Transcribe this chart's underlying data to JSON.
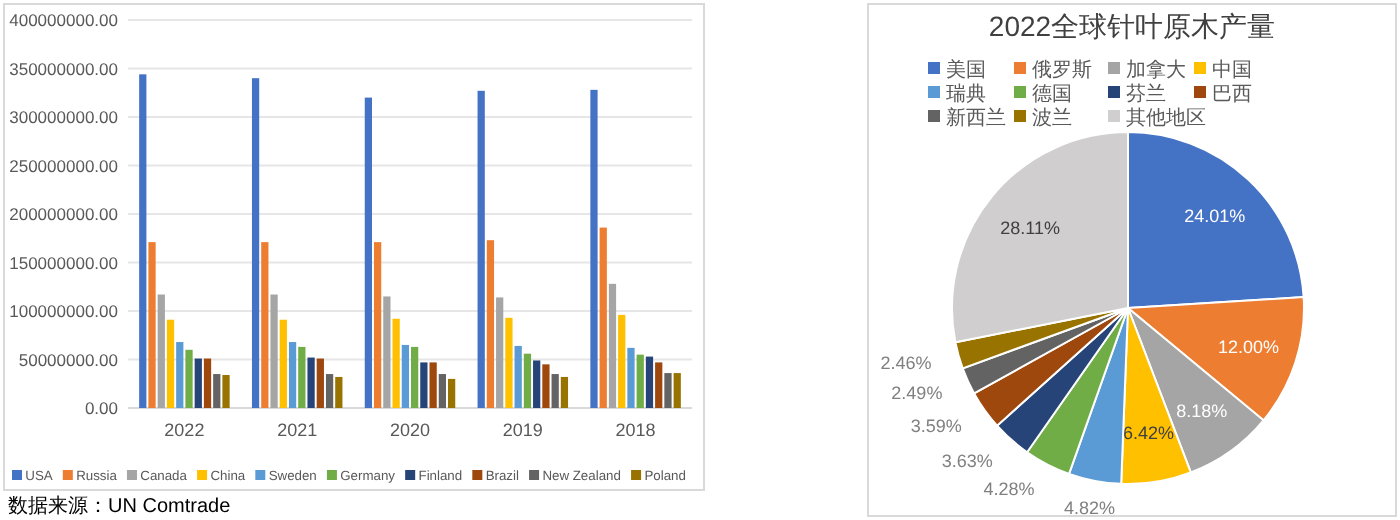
{
  "chart_data": [
    {
      "type": "bar",
      "categories": [
        "2022",
        "2021",
        "2020",
        "2019",
        "2018"
      ],
      "series": [
        {
          "name": "USA",
          "color": "#4472c4",
          "values": [
            344000000,
            340000000,
            320000000,
            327000000,
            328000000
          ]
        },
        {
          "name": "Russia",
          "color": "#ed7d31",
          "values": [
            171000000,
            171000000,
            171000000,
            173000000,
            186000000
          ]
        },
        {
          "name": "Canada",
          "color": "#a5a5a5",
          "values": [
            117000000,
            117000000,
            115000000,
            114000000,
            128000000
          ]
        },
        {
          "name": "China",
          "color": "#ffc000",
          "values": [
            91000000,
            91000000,
            92000000,
            93000000,
            96000000
          ]
        },
        {
          "name": "Sweden",
          "color": "#5b9bd5",
          "values": [
            68000000,
            68000000,
            65000000,
            64000000,
            62000000
          ]
        },
        {
          "name": "Germany",
          "color": "#70ad47",
          "values": [
            60000000,
            63000000,
            63000000,
            56000000,
            55000000
          ]
        },
        {
          "name": "Finland",
          "color": "#264478",
          "values": [
            51000000,
            52000000,
            47000000,
            49000000,
            53000000
          ]
        },
        {
          "name": "Brazil",
          "color": "#9e480e",
          "values": [
            51000000,
            51000000,
            47000000,
            45000000,
            47000000
          ]
        },
        {
          "name": "New Zealand",
          "color": "#636363",
          "values": [
            35000000,
            35000000,
            35000000,
            35000000,
            36000000
          ]
        },
        {
          "name": "Poland",
          "color": "#997300",
          "values": [
            34000000,
            32000000,
            30000000,
            32000000,
            36000000
          ]
        }
      ],
      "ylim": [
        0,
        400000000
      ],
      "yticks": [
        {
          "value": 0,
          "label": "0.00"
        },
        {
          "value": 50000000,
          "label": "50000000.00"
        },
        {
          "value": 100000000,
          "label": "100000000.00"
        },
        {
          "value": 150000000,
          "label": "150000000.00"
        },
        {
          "value": 200000000,
          "label": "200000000.00"
        },
        {
          "value": 250000000,
          "label": "250000000.00"
        },
        {
          "value": 300000000,
          "label": "300000000.00"
        },
        {
          "value": 350000000,
          "label": "350000000.00"
        },
        {
          "value": 400000000,
          "label": "400000000.00"
        }
      ],
      "grid": "y",
      "legend": "bottom",
      "annotations": [
        "数据来源：UN Comtrade"
      ]
    },
    {
      "type": "pie",
      "title": "2022全球针叶原木产量",
      "categories": [
        "美国",
        "俄罗斯",
        "加拿大",
        "中国",
        "瑞典",
        "德国",
        "芬兰",
        "巴西",
        "新西兰",
        "波兰",
        "其他地区"
      ],
      "values": [
        24.01,
        12.0,
        8.18,
        6.42,
        4.82,
        4.28,
        3.63,
        3.59,
        2.49,
        2.46,
        28.11
      ],
      "value_labels": [
        "24.01%",
        "12.00%",
        "8.18%",
        "6.42%",
        "4.82%",
        "4.28%",
        "3.63%",
        "3.59%",
        "2.49%",
        "2.46%",
        "28.11%"
      ],
      "colors": [
        "#4472c4",
        "#ed7d31",
        "#a5a5a5",
        "#ffc000",
        "#5b9bd5",
        "#70ad47",
        "#264478",
        "#9e480e",
        "#636363",
        "#997300",
        "#d0cece"
      ],
      "legend": "top"
    }
  ]
}
